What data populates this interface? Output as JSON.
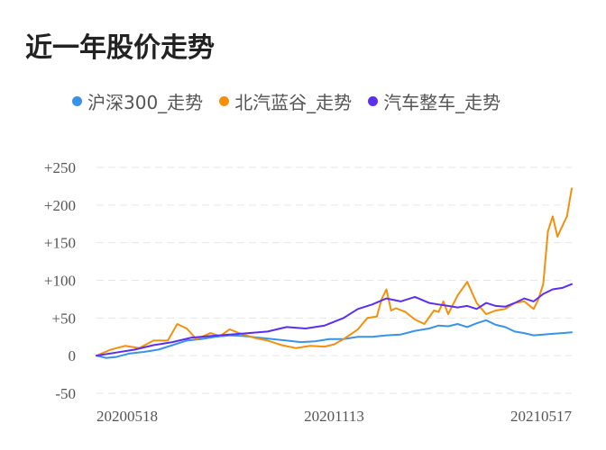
{
  "title": "近一年股价走势",
  "chart_data": {
    "type": "line",
    "title": "近一年股价走势",
    "legend_position": "top",
    "grid": true,
    "ylim": [
      -50,
      250
    ],
    "y_ticks": [
      "+250",
      "+200",
      "+150",
      "+100",
      "+50",
      "0",
      "-50"
    ],
    "y_tick_values": [
      250,
      200,
      150,
      100,
      50,
      0,
      -50
    ],
    "x_ticks": [
      "20200518",
      "20201113",
      "20210517"
    ],
    "x_tick_positions": [
      0,
      0.5,
      1
    ],
    "series": [
      {
        "name": "沪深300_走势",
        "color": "#3a92e6",
        "points": [
          [
            0,
            0
          ],
          [
            0.02,
            -3
          ],
          [
            0.04,
            -2
          ],
          [
            0.07,
            3
          ],
          [
            0.1,
            5
          ],
          [
            0.13,
            8
          ],
          [
            0.16,
            14
          ],
          [
            0.19,
            20
          ],
          [
            0.22,
            22
          ],
          [
            0.25,
            25
          ],
          [
            0.28,
            27
          ],
          [
            0.31,
            26
          ],
          [
            0.34,
            24
          ],
          [
            0.37,
            22
          ],
          [
            0.4,
            20
          ],
          [
            0.43,
            18
          ],
          [
            0.46,
            19
          ],
          [
            0.49,
            22
          ],
          [
            0.52,
            22
          ],
          [
            0.55,
            25
          ],
          [
            0.58,
            25
          ],
          [
            0.61,
            27
          ],
          [
            0.64,
            28
          ],
          [
            0.67,
            33
          ],
          [
            0.7,
            36
          ],
          [
            0.72,
            40
          ],
          [
            0.74,
            39
          ],
          [
            0.76,
            42
          ],
          [
            0.78,
            38
          ],
          [
            0.8,
            43
          ],
          [
            0.82,
            47
          ],
          [
            0.84,
            41
          ],
          [
            0.86,
            38
          ],
          [
            0.88,
            32
          ],
          [
            0.9,
            30
          ],
          [
            0.92,
            27
          ],
          [
            0.94,
            28
          ],
          [
            0.96,
            29
          ],
          [
            0.98,
            30
          ],
          [
            1,
            31
          ]
        ]
      },
      {
        "name": "北汽蓝谷_走势",
        "color": "#f4900c",
        "points": [
          [
            0,
            0
          ],
          [
            0.03,
            8
          ],
          [
            0.06,
            13
          ],
          [
            0.09,
            10
          ],
          [
            0.12,
            20
          ],
          [
            0.15,
            20
          ],
          [
            0.17,
            42
          ],
          [
            0.19,
            36
          ],
          [
            0.21,
            22
          ],
          [
            0.24,
            30
          ],
          [
            0.26,
            26
          ],
          [
            0.28,
            35
          ],
          [
            0.3,
            30
          ],
          [
            0.33,
            24
          ],
          [
            0.36,
            20
          ],
          [
            0.39,
            14
          ],
          [
            0.42,
            10
          ],
          [
            0.45,
            13
          ],
          [
            0.48,
            12
          ],
          [
            0.5,
            15
          ],
          [
            0.52,
            22
          ],
          [
            0.55,
            35
          ],
          [
            0.57,
            50
          ],
          [
            0.59,
            52
          ],
          [
            0.6,
            75
          ],
          [
            0.61,
            88
          ],
          [
            0.62,
            60
          ],
          [
            0.63,
            63
          ],
          [
            0.65,
            58
          ],
          [
            0.67,
            48
          ],
          [
            0.69,
            42
          ],
          [
            0.71,
            60
          ],
          [
            0.72,
            58
          ],
          [
            0.73,
            72
          ],
          [
            0.74,
            55
          ],
          [
            0.76,
            80
          ],
          [
            0.78,
            98
          ],
          [
            0.8,
            70
          ],
          [
            0.82,
            55
          ],
          [
            0.84,
            60
          ],
          [
            0.86,
            62
          ],
          [
            0.88,
            70
          ],
          [
            0.9,
            72
          ],
          [
            0.92,
            62
          ],
          [
            0.93,
            75
          ],
          [
            0.94,
            95
          ],
          [
            0.95,
            165
          ],
          [
            0.96,
            185
          ],
          [
            0.97,
            158
          ],
          [
            0.98,
            172
          ],
          [
            0.99,
            185
          ],
          [
            1,
            222
          ]
        ]
      },
      {
        "name": "汽车整车_走势",
        "color": "#5a2ff0",
        "points": [
          [
            0,
            0
          ],
          [
            0.04,
            4
          ],
          [
            0.08,
            8
          ],
          [
            0.12,
            14
          ],
          [
            0.16,
            18
          ],
          [
            0.2,
            24
          ],
          [
            0.24,
            26
          ],
          [
            0.28,
            28
          ],
          [
            0.32,
            30
          ],
          [
            0.36,
            32
          ],
          [
            0.4,
            38
          ],
          [
            0.44,
            36
          ],
          [
            0.48,
            40
          ],
          [
            0.52,
            50
          ],
          [
            0.55,
            62
          ],
          [
            0.58,
            68
          ],
          [
            0.61,
            76
          ],
          [
            0.64,
            72
          ],
          [
            0.67,
            78
          ],
          [
            0.7,
            70
          ],
          [
            0.72,
            68
          ],
          [
            0.74,
            66
          ],
          [
            0.76,
            64
          ],
          [
            0.78,
            66
          ],
          [
            0.8,
            62
          ],
          [
            0.82,
            70
          ],
          [
            0.84,
            66
          ],
          [
            0.86,
            65
          ],
          [
            0.88,
            70
          ],
          [
            0.9,
            76
          ],
          [
            0.92,
            72
          ],
          [
            0.94,
            82
          ],
          [
            0.96,
            88
          ],
          [
            0.98,
            90
          ],
          [
            1,
            95
          ]
        ]
      }
    ]
  }
}
